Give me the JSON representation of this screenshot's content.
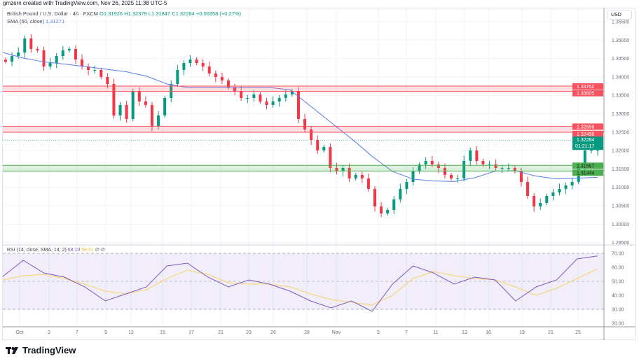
{
  "credit": "gmzern created with TradingView.com, Nov 26, 2025 11:38 UTC-5",
  "legend": {
    "symbol": "British Pound / U.S. Dollar · 4h · FXCM",
    "open": "O1.31926",
    "high": "H1.32379",
    "low": "L1.31847",
    "close": "C1.32284",
    "change": "+0.00358 (+0.27%)",
    "sma_label": "SMA (50, close)",
    "sma_value": "1.31271",
    "rsi_label": "RSI (14, close, SMA, 14, 2)",
    "rsi_value": "68.10",
    "rsi_sma_value": "58.91",
    "rsi_extra": "∅ ∅"
  },
  "currency": "USD",
  "logo_text": "TradingView",
  "colors": {
    "up": "#089981",
    "down": "#f23645",
    "sma": "#5b7de8",
    "rsi": "#7e57c2",
    "rsi_sma": "#f5d46b",
    "resistance": "#f7525f",
    "support": "#4caf50",
    "current": "#089981"
  },
  "chart_data": {
    "type": "candlestick",
    "timeframe": "4h",
    "x_tick_labels": [
      "Oct",
      "3",
      "7",
      "9",
      "12",
      "15",
      "17",
      "21",
      "23",
      "26",
      "29",
      "Nov",
      "5",
      "7",
      "11",
      "13",
      "16",
      "19",
      "21",
      "25"
    ],
    "y_tick_labels": [
      "1.35500",
      "1.35000",
      "1.34500",
      "1.34000",
      "1.33500",
      "1.33000",
      "1.32500",
      "1.32000",
      "1.31500",
      "1.31000",
      "1.30500",
      "1.30000",
      "1.29500"
    ],
    "ylim": [
      1.2945,
      1.3575
    ],
    "closes": [
      1.34416,
      1.34568,
      1.34663,
      1.35044,
      1.34759,
      1.34721,
      1.34283,
      1.34378,
      1.34568,
      1.34721,
      1.34759,
      1.34473,
      1.34283,
      1.34188,
      1.34188,
      1.33998,
      1.33808,
      1.32953,
      1.33238,
      1.32857,
      1.33618,
      1.33333,
      1.33238,
      1.32667,
      1.32953,
      1.33428,
      1.33808,
      1.34188,
      1.34378,
      1.34473,
      1.34378,
      1.34283,
      1.34093,
      1.33998,
      1.33903,
      1.33713,
      1.33618,
      1.33428,
      1.33428,
      1.33523,
      1.33333,
      1.33238,
      1.33333,
      1.33428,
      1.33523,
      1.33618,
      1.32857,
      1.32572,
      1.32287,
      1.32002,
      1.32097,
      1.31527,
      1.31432,
      1.31527,
      1.31242,
      1.31337,
      1.31242,
      1.30956,
      1.30481,
      1.30291,
      1.30386,
      1.30671,
      1.30956,
      1.31146,
      1.31432,
      1.31622,
      1.31717,
      1.31622,
      1.31527,
      1.31337,
      1.31242,
      1.31242,
      1.31717,
      1.32002,
      1.31717,
      1.31622,
      1.31622,
      1.31527,
      1.31527,
      1.31527,
      1.31432,
      1.31146,
      1.30766,
      1.30481,
      1.30576,
      1.30766,
      1.30861,
      1.30956,
      1.31051,
      1.31146,
      1.31527,
      1.32002,
      1.32002,
      1.32284
    ],
    "sma_50": [
      1.34663,
      1.34511,
      1.34408,
      1.3435,
      1.34283,
      1.34212,
      1.3414,
      1.34022,
      1.33808,
      1.33713,
      1.33713,
      1.33713,
      1.33713,
      1.33713,
      1.3365,
      1.33206,
      1.32762,
      1.32319,
      1.31844,
      1.31432,
      1.31223,
      1.31172,
      1.31159,
      1.31261,
      1.31438,
      1.31451,
      1.31305,
      1.3123,
      1.3125,
      1.31271
    ],
    "zones": [
      {
        "type": "resistance",
        "top": "1.33752",
        "bottom": "1.33605"
      },
      {
        "type": "resistance",
        "top": "1.32659",
        "bottom": "1.32496"
      },
      {
        "type": "support",
        "top": "1.31597",
        "bottom": "1.31444"
      }
    ],
    "current_price": "1.32284",
    "countdown": "01:21:17",
    "rsi": {
      "ylim": [
        20,
        70
      ],
      "y_tick_labels": [
        "70.00",
        "60.00",
        "50.00",
        "40.00",
        "30.00",
        "20.00"
      ],
      "bands": [
        70,
        30
      ],
      "values": [
        53.5,
        65,
        56,
        53,
        46,
        36,
        41,
        46,
        61,
        63,
        53,
        46,
        51,
        48,
        43,
        36,
        31,
        36,
        28.5,
        48,
        61,
        56,
        48,
        53,
        51,
        36,
        46,
        51,
        66,
        68.1
      ],
      "sma": [
        51,
        54,
        55,
        52,
        48,
        43,
        41,
        44,
        52,
        58,
        55,
        49,
        48,
        48,
        46,
        41,
        37,
        35,
        33,
        40,
        52,
        57,
        54,
        52,
        51,
        46,
        40,
        45,
        52,
        58.91
      ]
    }
  }
}
